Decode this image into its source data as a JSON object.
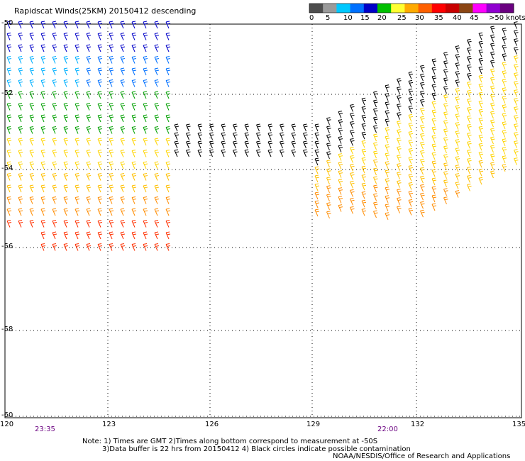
{
  "title": "Rapidscat Winds(25KM) 20150412 descending",
  "legend": {
    "labels": [
      "0",
      "5",
      "10",
      "15",
      "20",
      "25",
      "30",
      "35",
      "40",
      "45",
      ">50 knots"
    ],
    "colors": [
      "#4d4d4d",
      "#9a9a9a",
      "#00c8ff",
      "#0070ff",
      "#0000c8",
      "#00c000",
      "#ffff30",
      "#ffaa00",
      "#ff6000",
      "#ff0000",
      "#c80000",
      "#8b4513",
      "#ff00ff",
      "#9000d0",
      "#6a0080"
    ]
  },
  "axes": {
    "lat_labels": [
      "-50",
      "-52",
      "-54",
      "-56",
      "-58",
      "-60"
    ],
    "lon_labels": [
      "120",
      "123",
      "126",
      "129",
      "132",
      "135"
    ]
  },
  "times": {
    "left": "23:35",
    "right": "22:00"
  },
  "notes": {
    "line1": "Note: 1) Times are GMT 2)Times along bottom correspond to measurement at -50S",
    "line2": "3)Data buffer is 22 hrs from 20150412 4) Black circles indicate possible contamination",
    "line3": "NOAA/NESDIS/Office of Research and Applications"
  },
  "map_data": {
    "lon_range": [
      120,
      135
    ],
    "lat_range": [
      -60,
      -50
    ],
    "swaths": [
      {
        "name": "left swath",
        "lon_range": [
          120,
          124.6
        ],
        "lat_range": [
          -56.3,
          -50
        ]
      },
      {
        "name": "right swath",
        "lon_range": [
          125.2,
          135
        ],
        "lat_range": [
          -55.2,
          -50
        ]
      }
    ]
  }
}
